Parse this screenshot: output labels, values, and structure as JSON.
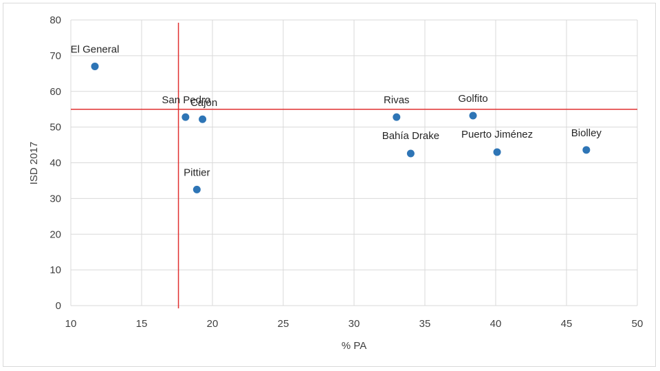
{
  "chart_data": {
    "type": "scatter",
    "xlabel": "% PA",
    "ylabel": "ISD 2017",
    "xlim": [
      10,
      50
    ],
    "ylim": [
      0,
      80
    ],
    "xticks": [
      10,
      15,
      20,
      25,
      30,
      35,
      40,
      45,
      50
    ],
    "yticks": [
      0,
      10,
      20,
      30,
      40,
      50,
      60,
      70,
      80
    ],
    "grid": true,
    "point_color": "#2e75b6",
    "reference_line_color": "#e03030",
    "reference_lines": {
      "x": 17.6,
      "y": 55
    },
    "points": [
      {
        "label": "El General",
        "x": 11.7,
        "y": 67.0
      },
      {
        "label": "San Pedro",
        "x": 18.1,
        "y": 52.8
      },
      {
        "label": "Cajón",
        "x": 19.3,
        "y": 52.2
      },
      {
        "label": "Pittier",
        "x": 18.9,
        "y": 32.5
      },
      {
        "label": "Rivas",
        "x": 33.0,
        "y": 52.8
      },
      {
        "label": "Bahía Drake",
        "x": 34.0,
        "y": 42.6
      },
      {
        "label": "Golfito",
        "x": 38.4,
        "y": 53.2
      },
      {
        "label": "Puerto Jiménez",
        "x": 40.1,
        "y": 43.0
      },
      {
        "label": "Biolley",
        "x": 46.4,
        "y": 43.6
      }
    ]
  }
}
